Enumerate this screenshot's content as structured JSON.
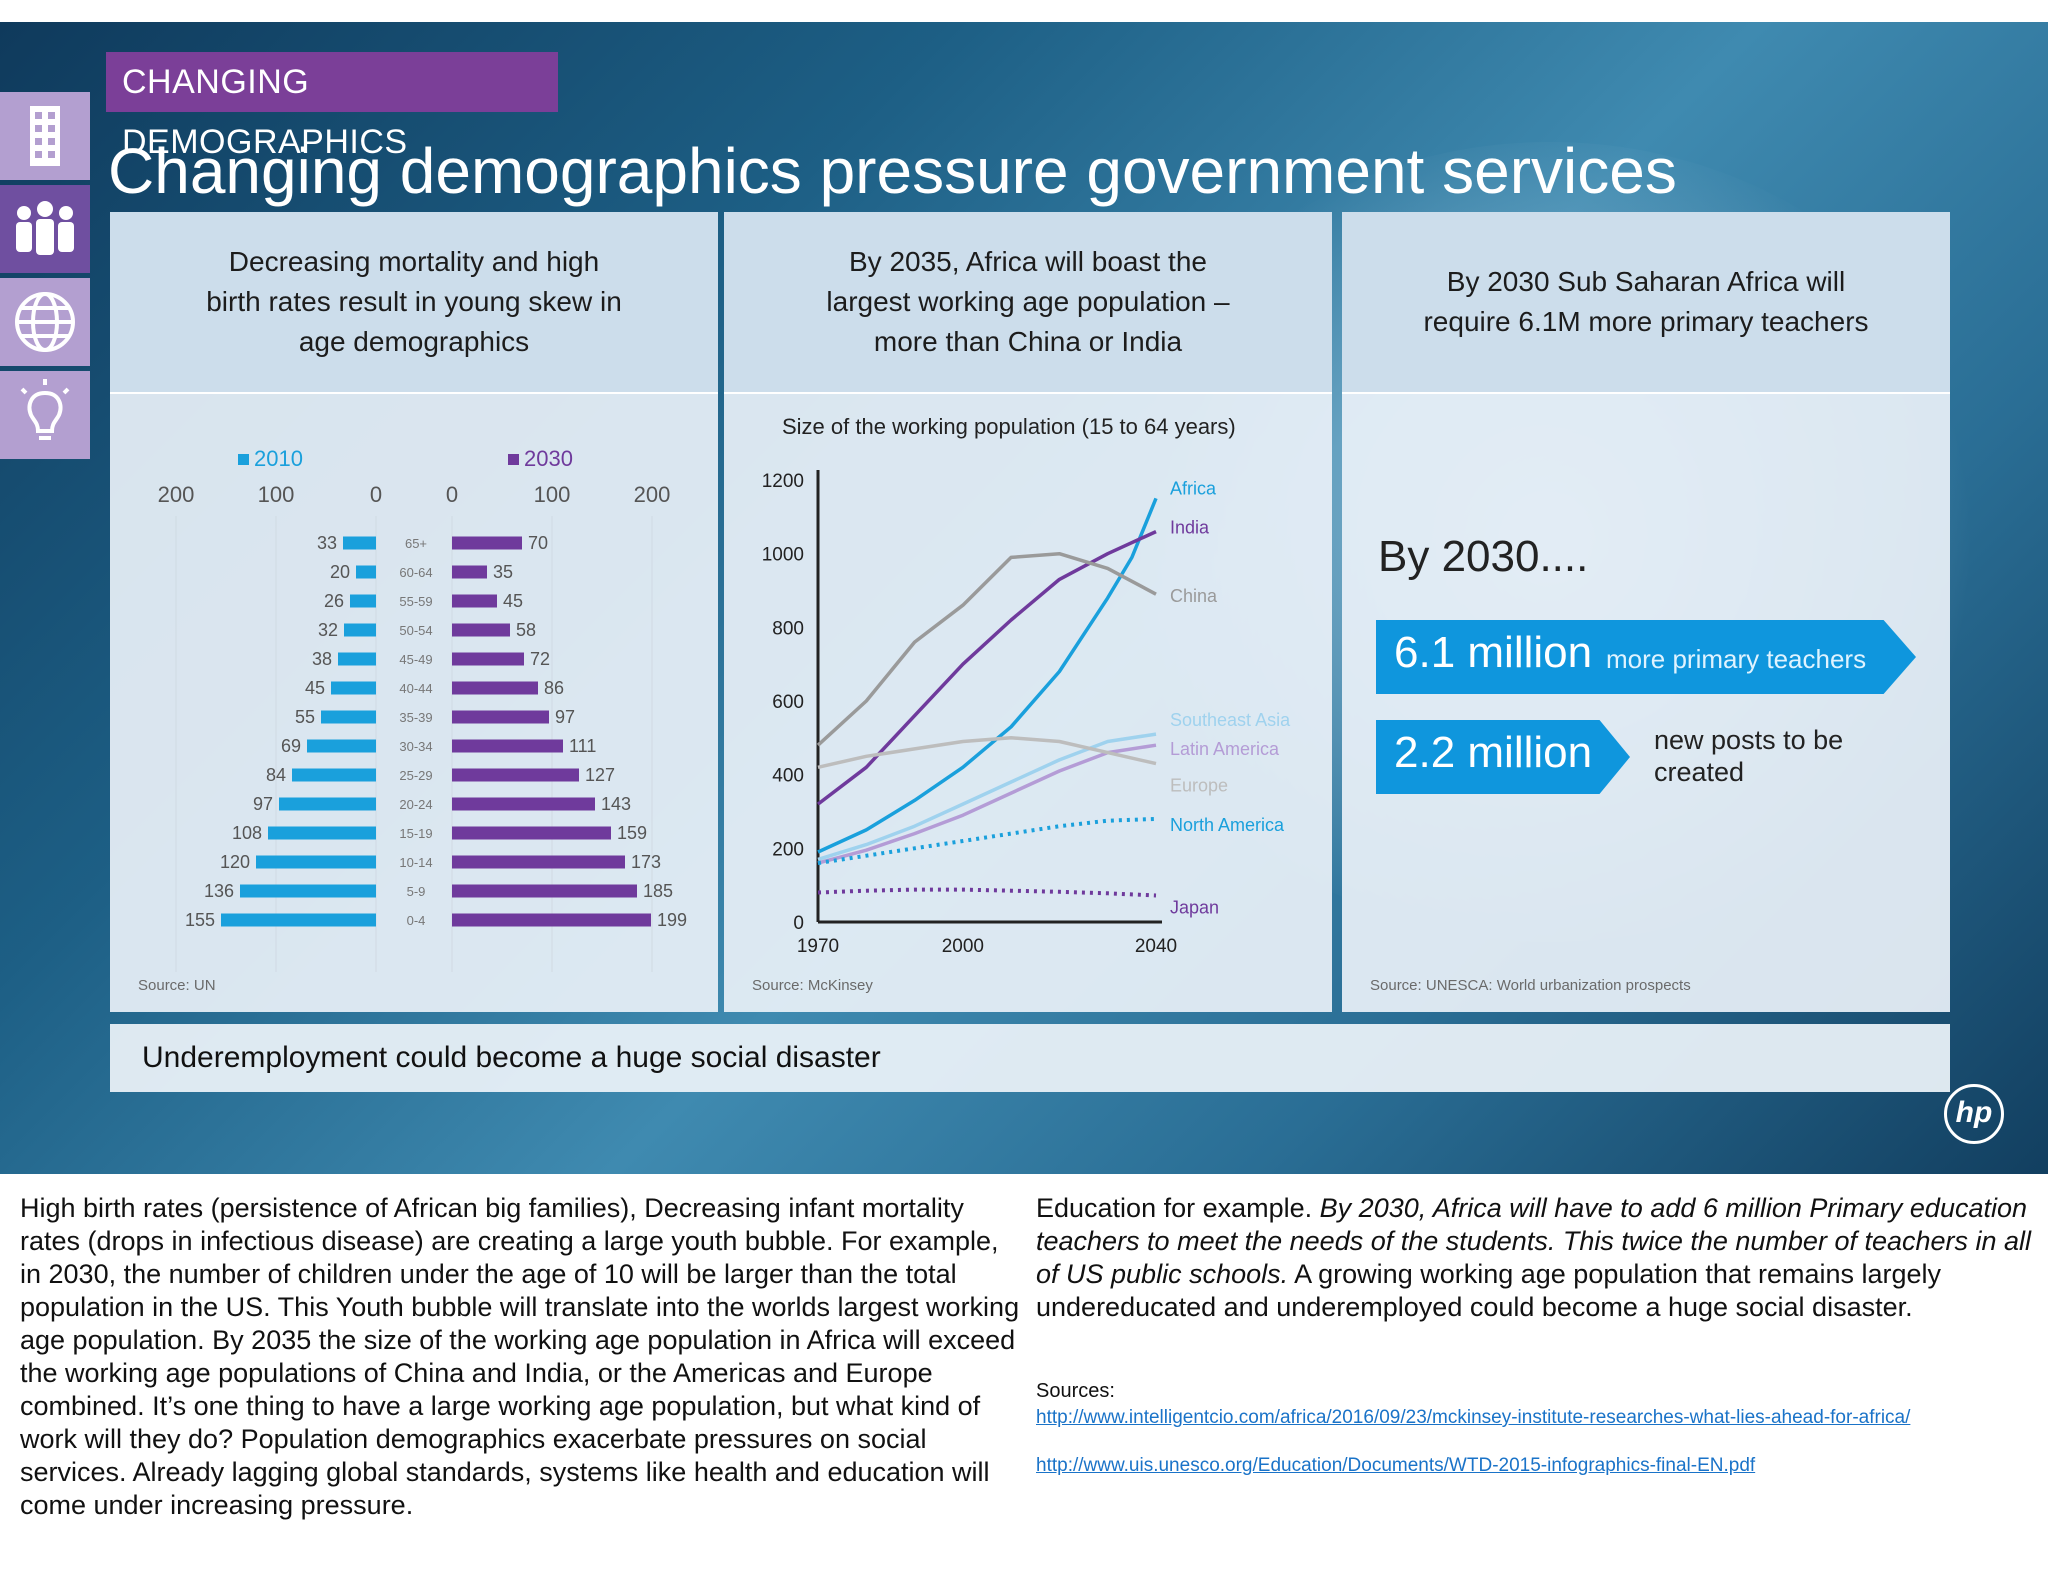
{
  "slide": {
    "tag": "CHANGING DEMOGRAPHICS",
    "title": "Changing demographics pressure government services",
    "banner": "Underemployment could become a huge social disaster",
    "logo": "hp",
    "side_icons": [
      "building-icon",
      "people-icon",
      "globe-icon",
      "lightbulb-icon"
    ],
    "colors": {
      "purple": "#7b3f98",
      "blue": "#0f96dd",
      "bg": "#1d5f85"
    }
  },
  "panels": {
    "p1": {
      "heading": "Decreasing mortality and high birth rates result in young skew in age demographics",
      "source": "Source: UN"
    },
    "p2": {
      "heading": "By 2035, Africa will boast the largest working age population – more than China or India",
      "source": "Source: McKinsey"
    },
    "p3": {
      "heading": "By 2030 Sub Saharan Africa will require 6.1M more primary teachers",
      "source": "Source: UNESCA: World urbanization prospects",
      "by2030": "By 2030....",
      "stat1_value": "6.1 million",
      "stat1_label": "more primary teachers",
      "stat2_value": "2.2 million",
      "stat2_label": "new posts to be created"
    }
  },
  "chart_data": [
    {
      "type": "bar",
      "orientation": "horizontal-pyramid",
      "categories": [
        "65+",
        "60-64",
        "55-59",
        "50-54",
        "45-49",
        "40-44",
        "35-39",
        "30-34",
        "25-29",
        "20-24",
        "15-19",
        "10-14",
        "5-9",
        "0-4"
      ],
      "series": [
        {
          "name": "2010",
          "values": [
            33,
            20,
            26,
            32,
            38,
            45,
            55,
            69,
            84,
            97,
            108,
            120,
            136,
            155
          ],
          "color": "#1aa0dc"
        },
        {
          "name": "2030",
          "values": [
            70,
            35,
            45,
            58,
            72,
            86,
            97,
            111,
            127,
            143,
            159,
            173,
            185,
            199
          ],
          "color": "#6f3a9c"
        }
      ],
      "left_ticks": [
        "200",
        "100",
        "0"
      ],
      "right_ticks": [
        "0",
        "100",
        "200"
      ],
      "xlim": [
        0,
        200
      ],
      "legend": "top"
    },
    {
      "type": "line",
      "title": "Size of the working population (15 to 64 years)",
      "x_ticks": [
        "1970",
        "2000",
        "2040"
      ],
      "y_ticks": [
        "0",
        "200",
        "400",
        "600",
        "800",
        "1000",
        "1200"
      ],
      "xlim": [
        1970,
        2040
      ],
      "ylim": [
        0,
        1200
      ],
      "series": [
        {
          "name": "Africa",
          "color": "#1aa0dc",
          "x": [
            1970,
            1980,
            1990,
            2000,
            2010,
            2020,
            2030,
            2035,
            2040
          ],
          "y": [
            190,
            250,
            330,
            420,
            530,
            680,
            880,
            990,
            1150
          ]
        },
        {
          "name": "India",
          "color": "#6f3a9c",
          "x": [
            1970,
            1980,
            1990,
            2000,
            2010,
            2020,
            2030,
            2040
          ],
          "y": [
            320,
            420,
            560,
            700,
            820,
            930,
            1000,
            1060
          ]
        },
        {
          "name": "China",
          "color": "#9a9a9a",
          "x": [
            1970,
            1980,
            1990,
            2000,
            2010,
            2020,
            2030,
            2040
          ],
          "y": [
            480,
            600,
            760,
            860,
            990,
            1000,
            960,
            890
          ]
        },
        {
          "name": "Southeast Asia",
          "color": "#9fd2ee",
          "x": [
            1970,
            1980,
            1990,
            2000,
            2010,
            2020,
            2030,
            2040
          ],
          "y": [
            170,
            210,
            260,
            320,
            380,
            440,
            490,
            510
          ]
        },
        {
          "name": "Latin America",
          "color": "#b49cd6",
          "x": [
            1970,
            1980,
            1990,
            2000,
            2010,
            2020,
            2030,
            2040
          ],
          "y": [
            160,
            195,
            240,
            290,
            350,
            410,
            460,
            480
          ]
        },
        {
          "name": "Europe",
          "color": "#bdbdbd",
          "x": [
            1970,
            1980,
            1990,
            2000,
            2010,
            2020,
            2030,
            2040
          ],
          "y": [
            420,
            450,
            470,
            490,
            500,
            490,
            460,
            430
          ]
        },
        {
          "name": "North America",
          "color": "#1aa0dc",
          "dashed": true,
          "x": [
            1970,
            1980,
            1990,
            2000,
            2010,
            2020,
            2030,
            2040
          ],
          "y": [
            160,
            180,
            200,
            220,
            240,
            260,
            275,
            280
          ]
        },
        {
          "name": "Japan",
          "color": "#6f3a9c",
          "dashed": true,
          "x": [
            1970,
            1980,
            1990,
            2000,
            2010,
            2020,
            2030,
            2040
          ],
          "y": [
            80,
            85,
            88,
            88,
            85,
            82,
            78,
            72
          ]
        }
      ]
    }
  ],
  "notes": {
    "left": "High birth rates (persistence of African big families), Decreasing infant mortality rates (drops in infectious disease) are creating a large youth bubble.  For example, in 2030, the number of children under the age of 10 will be larger than the total population in the US. This Youth bubble will translate into the worlds largest working age population. By 2035 the size of the working age population in Africa will exceed the working age populations of China and India, or the Americas and Europe combined. It’s one thing to have a large working age population, but what kind of work will they do? Population demographics exacerbate pressures on social services. Already lagging global standards, systems like health and education will come under increasing pressure.",
    "right_plain1": "Education for example.  ",
    "right_italic": "By 2030, Africa will have to add 6 million Primary education teachers to meet the needs of the students.  This twice the number of teachers in all of US public schools.",
    "right_plain2": " A growing working age population that remains largely undereducated and underemployed could become a huge social disaster.",
    "sources_label": "Sources:",
    "link1": "http://www.intelligentcio.com/africa/2016/09/23/mckinsey-institute-researches-what-lies-ahead-for-africa/",
    "link2": "http://www.uis.unesco.org/Education/Documents/WTD-2015-infographics-final-EN.pdf"
  }
}
